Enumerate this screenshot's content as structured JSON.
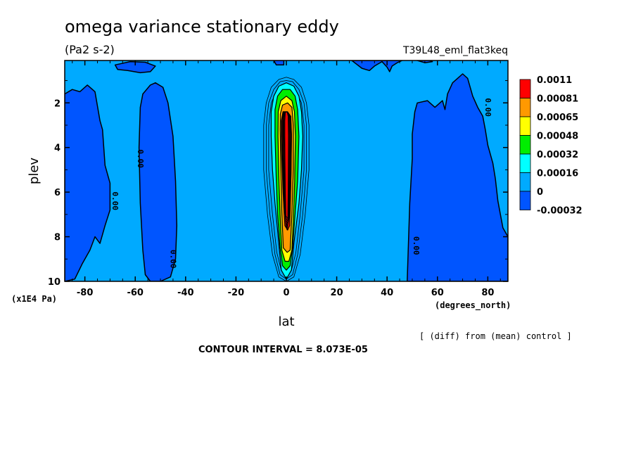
{
  "chart_data": {
    "type": "heatmap",
    "title": "omega variance stationary eddy",
    "units": "(Pa2 s-2)",
    "run_label": "T39L48_eml_flat3keq",
    "xlabel": "lat",
    "xunits": "(degrees_north)",
    "ylabel": "plev",
    "yunits": "(x1E4 Pa)",
    "xlim": [
      -88,
      88
    ],
    "ylim": [
      10,
      0.1
    ],
    "x_ticks": [
      -80,
      -60,
      -40,
      -20,
      0,
      20,
      40,
      60,
      80
    ],
    "x_tick_labels": [
      "-80",
      "-60",
      "-40",
      "-20",
      "0",
      "20",
      "40",
      "60",
      "80"
    ],
    "y_ticks": [
      2,
      4,
      6,
      8,
      10
    ],
    "y_tick_labels": [
      "2",
      "4",
      "6",
      "8",
      "10"
    ],
    "levels": [
      -0.00032,
      0,
      0.00016,
      0.00032,
      0.00048,
      0.00065,
      0.00081,
      0.0011
    ],
    "legend_labels": [
      "0.0011",
      "0.00081",
      "0.00065",
      "0.00048",
      "0.00032",
      "0.00016",
      "0",
      "-0.00032"
    ],
    "legend_colors": [
      "#ff0000",
      "#ff9900",
      "#ffff00",
      "#00ee00",
      "#00ffff",
      "#00aaff",
      "#0055ff"
    ],
    "legend_placement": "right",
    "contour_label": "0.00",
    "contour_interval_text": "CONTOUR INTERVAL = 8.073E-05",
    "note": "[ (diff) from (mean) control ]",
    "colors": {
      "background_field": "#00aaff",
      "negative_field": "#0055ff",
      "core_red": "#ff0000",
      "core_orange": "#ff9900",
      "core_yellow": "#ffff00",
      "core_green": "#00ee00",
      "core_cyan": "#00ffff"
    },
    "negative_regions": [
      {
        "name": "south-polar",
        "points": [
          [
            -88,
            1.6
          ],
          [
            -85,
            1.4
          ],
          [
            -82,
            1.5
          ],
          [
            -79,
            1.2
          ],
          [
            -76,
            1.5
          ],
          [
            -74,
            2.8
          ],
          [
            -73,
            3.2
          ],
          [
            -72,
            4.8
          ],
          [
            -70,
            5.6
          ],
          [
            -70,
            6.8
          ],
          [
            -72,
            7.5
          ],
          [
            -74,
            8.3
          ],
          [
            -76,
            8.0
          ],
          [
            -78,
            8.6
          ],
          [
            -81,
            9.2
          ],
          [
            -84,
            9.9
          ],
          [
            -88,
            10
          ]
        ]
      },
      {
        "name": "south-midlat",
        "points": [
          [
            -58,
            2.2
          ],
          [
            -57,
            1.6
          ],
          [
            -54,
            1.2
          ],
          [
            -52,
            1.1
          ],
          [
            -49,
            1.3
          ],
          [
            -47,
            2.0
          ],
          [
            -45,
            3.5
          ],
          [
            -44,
            5.5
          ],
          [
            -43.5,
            7.5
          ],
          [
            -44,
            9.0
          ],
          [
            -46,
            9.8
          ],
          [
            -50,
            10
          ],
          [
            -54,
            10
          ],
          [
            -56,
            9.7
          ],
          [
            -57,
            8.6
          ],
          [
            -58,
            6.5
          ],
          [
            -58.5,
            4
          ]
        ]
      },
      {
        "name": "north-midlat",
        "points": [
          [
            48,
            10
          ],
          [
            49,
            6.5
          ],
          [
            50,
            4.5
          ],
          [
            50,
            3.4
          ],
          [
            51,
            2.4
          ],
          [
            52,
            2.0
          ],
          [
            56,
            1.9
          ],
          [
            59,
            2.2
          ],
          [
            62,
            1.9
          ],
          [
            63,
            2.3
          ],
          [
            64,
            1.6
          ],
          [
            66,
            1.1
          ],
          [
            68,
            0.9
          ],
          [
            70,
            0.7
          ],
          [
            72,
            0.9
          ],
          [
            74,
            1.7
          ],
          [
            76,
            2.2
          ],
          [
            78,
            2.6
          ],
          [
            79,
            3.2
          ],
          [
            80,
            3.9
          ],
          [
            82,
            4.7
          ],
          [
            83,
            5.4
          ],
          [
            84,
            6.4
          ],
          [
            86,
            7.6
          ],
          [
            88,
            8.0
          ],
          [
            88,
            10
          ]
        ]
      },
      {
        "name": "top-left",
        "points": [
          [
            -68,
            0.3
          ],
          [
            -62,
            0.15
          ],
          [
            -56,
            0.18
          ],
          [
            -52,
            0.35
          ],
          [
            -54,
            0.6
          ],
          [
            -58,
            0.65
          ],
          [
            -63,
            0.55
          ],
          [
            -67,
            0.5
          ]
        ]
      },
      {
        "name": "top-center",
        "points": [
          [
            -5,
            0.1
          ],
          [
            -4,
            0.3
          ],
          [
            -1,
            0.3
          ],
          [
            -1,
            0.1
          ]
        ]
      },
      {
        "name": "top-right",
        "points": [
          [
            26,
            0.1
          ],
          [
            30,
            0.45
          ],
          [
            33,
            0.55
          ],
          [
            35,
            0.35
          ],
          [
            38,
            0.15
          ],
          [
            40,
            0.4
          ],
          [
            41,
            0.6
          ],
          [
            42,
            0.35
          ],
          [
            44,
            0.2
          ],
          [
            46,
            0.1
          ]
        ]
      },
      {
        "name": "top-right-2",
        "points": [
          [
            52,
            0.1
          ],
          [
            55,
            0.2
          ],
          [
            58,
            0.15
          ],
          [
            57,
            0.1
          ]
        ]
      }
    ],
    "core_bands": [
      {
        "level": "0.00016",
        "color": "#00ffff",
        "points": [
          [
            -6,
            2.4
          ],
          [
            -5,
            1.7
          ],
          [
            -3,
            1.25
          ],
          [
            0,
            1.1
          ],
          [
            3,
            1.25
          ],
          [
            5,
            1.7
          ],
          [
            6,
            2.4
          ],
          [
            6.5,
            3.5
          ],
          [
            6,
            5
          ],
          [
            5,
            6.5
          ],
          [
            3,
            8.3
          ],
          [
            2,
            9.5
          ],
          [
            0,
            9.9
          ],
          [
            -2,
            9.5
          ],
          [
            -3,
            8.3
          ],
          [
            -4.5,
            6.5
          ],
          [
            -5.5,
            5
          ],
          [
            -6,
            3.5
          ]
        ]
      },
      {
        "level": "0.00032",
        "color": "#00ee00",
        "points": [
          [
            -4.5,
            2.3
          ],
          [
            -3.5,
            1.7
          ],
          [
            -1.5,
            1.4
          ],
          [
            1.5,
            1.4
          ],
          [
            3.5,
            1.7
          ],
          [
            4.5,
            2.3
          ],
          [
            5,
            3.5
          ],
          [
            4.5,
            5.5
          ],
          [
            3.5,
            7
          ],
          [
            2.5,
            8.5
          ],
          [
            1.5,
            9.3
          ],
          [
            0,
            9.5
          ],
          [
            -1.5,
            9.3
          ],
          [
            -2.5,
            8.5
          ],
          [
            -3.5,
            7
          ],
          [
            -4,
            5.5
          ],
          [
            -4.5,
            3.5
          ]
        ]
      },
      {
        "level": "0.00048",
        "color": "#ffff00",
        "points": [
          [
            -3.2,
            2.4
          ],
          [
            -2.2,
            1.9
          ],
          [
            0,
            1.7
          ],
          [
            2.2,
            1.9
          ],
          [
            3.2,
            2.4
          ],
          [
            3.6,
            3.5
          ],
          [
            3.3,
            5.5
          ],
          [
            2.8,
            7.2
          ],
          [
            2.2,
            8.6
          ],
          [
            1,
            9.1
          ],
          [
            -0.5,
            9.1
          ],
          [
            -1.8,
            8.6
          ],
          [
            -2.4,
            7.2
          ],
          [
            -2.9,
            5.5
          ],
          [
            -3.3,
            3.5
          ]
        ]
      },
      {
        "level": "0.00065",
        "color": "#ff9900",
        "points": [
          [
            -2.4,
            2.5
          ],
          [
            -1.5,
            2.1
          ],
          [
            0.5,
            2.0
          ],
          [
            2.2,
            2.2
          ],
          [
            2.8,
            3
          ],
          [
            2.8,
            5
          ],
          [
            2.2,
            7
          ],
          [
            1.5,
            8.6
          ],
          [
            0.3,
            8.7
          ],
          [
            -1.2,
            8.5
          ],
          [
            -1.8,
            7
          ],
          [
            -2.2,
            5
          ],
          [
            -2.5,
            3.2
          ]
        ]
      },
      {
        "level": "0.0011",
        "color": "#ff0000",
        "points": [
          [
            -2,
            2.8
          ],
          [
            -1.3,
            2.4
          ],
          [
            0.5,
            2.4
          ],
          [
            1.7,
            2.6
          ],
          [
            2.0,
            3.5
          ],
          [
            1.8,
            5.5
          ],
          [
            1.3,
            7.5
          ],
          [
            0.5,
            7.7
          ],
          [
            -0.6,
            7.5
          ],
          [
            -1.3,
            6
          ],
          [
            -1.8,
            4.5
          ],
          [
            -2,
            3.5
          ]
        ]
      }
    ],
    "core_outlines": [
      {
        "points": [
          [
            -9,
            3
          ],
          [
            -8,
            2
          ],
          [
            -6,
            1.3
          ],
          [
            -3,
            0.95
          ],
          [
            0,
            0.85
          ],
          [
            3,
            0.95
          ],
          [
            6,
            1.3
          ],
          [
            8,
            2
          ],
          [
            9,
            3
          ],
          [
            9,
            5
          ],
          [
            7.5,
            7
          ],
          [
            5.5,
            8.8
          ],
          [
            3,
            9.8
          ],
          [
            0,
            10
          ],
          [
            -3,
            9.8
          ],
          [
            -5.5,
            8.8
          ],
          [
            -7.5,
            7
          ],
          [
            -9,
            5
          ]
        ]
      },
      {
        "points": [
          [
            -8,
            3
          ],
          [
            -7,
            2
          ],
          [
            -5,
            1.4
          ],
          [
            -2.5,
            1.05
          ],
          [
            0,
            1.0
          ],
          [
            2.5,
            1.05
          ],
          [
            5,
            1.4
          ],
          [
            7,
            2
          ],
          [
            8,
            3
          ],
          [
            8,
            5
          ],
          [
            6.5,
            7
          ],
          [
            4.5,
            8.8
          ],
          [
            2.5,
            9.7
          ],
          [
            0,
            9.9
          ],
          [
            -2.5,
            9.7
          ],
          [
            -4.5,
            8.8
          ],
          [
            -6.5,
            7
          ],
          [
            -8,
            5
          ]
        ]
      },
      {
        "points": [
          [
            -7,
            3
          ],
          [
            -6,
            2
          ],
          [
            -4,
            1.5
          ],
          [
            -2,
            1.2
          ],
          [
            0,
            1.15
          ],
          [
            2,
            1.2
          ],
          [
            4,
            1.5
          ],
          [
            6,
            2
          ],
          [
            7,
            3
          ],
          [
            7,
            5
          ],
          [
            5.5,
            7
          ],
          [
            3.8,
            8.7
          ],
          [
            2,
            9.5
          ],
          [
            0,
            9.7
          ],
          [
            -2,
            9.5
          ],
          [
            -3.8,
            8.7
          ],
          [
            -5.5,
            7
          ],
          [
            -7,
            5
          ]
        ]
      }
    ],
    "contour_labels": [
      {
        "x": -69,
        "y": 6.4,
        "text": "0.00"
      },
      {
        "x": -59,
        "y": 4.5,
        "text": "0.00"
      },
      {
        "x": -46,
        "y": 9.0,
        "text": "0.00"
      },
      {
        "x": 50.5,
        "y": 8.4,
        "text": "0.00"
      },
      {
        "x": 79,
        "y": 2.2,
        "text": "0.00"
      }
    ]
  }
}
